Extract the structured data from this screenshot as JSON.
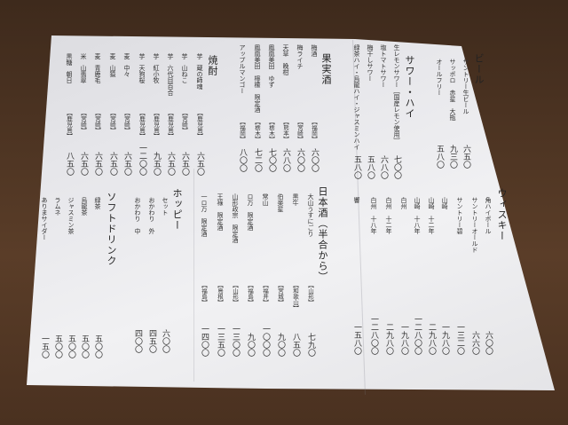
{
  "beer": {
    "title": "ビール",
    "items": [
      {
        "name": "サントリー生ビール",
        "price": "六五〇"
      },
      {
        "name": "サッポロ　赤星　大瓶",
        "price": "九三〇"
      },
      {
        "name": "オールフリー",
        "price": "五八〇"
      }
    ]
  },
  "sour": {
    "title": "サワー・ハイ",
    "items": [
      {
        "name": "生レモンサワー［国産レモン使用］",
        "price": "七〇〇"
      },
      {
        "name": "塩トマトサワー",
        "price": "六八〇"
      },
      {
        "name": "梅干しサワー",
        "price": "五八〇"
      },
      {
        "name": "緑茶ハイ・烏龍ハイ・ジャスミンハイ",
        "price": "五八〇"
      }
    ]
  },
  "fruit_wine": {
    "title": "果実酒",
    "items": [
      {
        "name": "梅酒",
        "origin": "【福岡】",
        "price": "六〇〇"
      },
      {
        "name": "梅ライチ",
        "origin": "【宮崎】",
        "price": "六〇〇"
      },
      {
        "name": "天草　晩柑",
        "origin": "【熊本】",
        "price": "六八〇"
      },
      {
        "name": "鳳凰美田　ゆず",
        "origin": "【栃木】",
        "price": "七〇〇"
      },
      {
        "name": "鳳凰美田　檸檬　限定酒",
        "origin": "【栃木】",
        "price": "七二〇"
      },
      {
        "name": "アップルマンゴー",
        "origin": "【福岡】",
        "price": "八〇〇"
      }
    ]
  },
  "shochu": {
    "title": "焼酎",
    "items": [
      {
        "type": "芋",
        "name": "蔵の師魂",
        "origin": "【鹿児島】",
        "price": "六五〇"
      },
      {
        "type": "芋",
        "name": "山ねこ",
        "origin": "【宮崎】",
        "price": "六五〇"
      },
      {
        "type": "芋",
        "name": "六代目百合",
        "origin": "【鹿児島】",
        "price": "六五〇"
      },
      {
        "type": "芋",
        "name": "紅小牧",
        "origin": "【鹿児島】",
        "price": "九五〇"
      },
      {
        "type": "芋",
        "name": "天狗桜",
        "origin": "【鹿児島】",
        "price": "一二〇〇"
      },
      {
        "type": "麦",
        "name": "中々",
        "origin": "【宮崎】",
        "price": "六五〇"
      },
      {
        "type": "麦",
        "name": "山猿",
        "origin": "【宮崎】",
        "price": "六五〇"
      },
      {
        "type": "麦",
        "name": "青鹿毛",
        "origin": "【宮崎】",
        "price": "六五〇"
      },
      {
        "type": "米",
        "name": "山翡翠",
        "origin": "【宮崎】",
        "price": "六五〇"
      },
      {
        "type": "黒糖",
        "name": "朝日",
        "origin": "【鹿児島】",
        "price": "八五〇"
      }
    ]
  },
  "whisky": {
    "title": "ウィスキー",
    "items": [
      {
        "name": "角ハイボール",
        "price": "六〇〇"
      },
      {
        "name": "サントリーオールド",
        "price": "六六〇"
      },
      {
        "name": "サントリー碧",
        "price": "一三二〇"
      },
      {
        "name": "山崎",
        "price": "一九八〇"
      },
      {
        "name": "山崎　十二年",
        "price": "二九八〇"
      },
      {
        "name": "山崎　十八年",
        "price": "一二八〇〇"
      },
      {
        "name": "白州",
        "price": "一九八〇"
      },
      {
        "name": "白州　十二年",
        "price": "二九八〇"
      },
      {
        "name": "白州　十八年",
        "price": "一二八〇〇"
      },
      {
        "name": "響",
        "price": "一五八〇"
      }
    ]
  },
  "sake": {
    "title": "日本酒（半合から）",
    "items": [
      {
        "name": "大山うすにごり",
        "origin": "【山形】",
        "price": "七九〇"
      },
      {
        "name": "黒牛",
        "origin": "【和歌山】",
        "price": "八五〇"
      },
      {
        "name": "伯楽星",
        "origin": "【宮城】",
        "price": "九〇〇"
      },
      {
        "name": "常山",
        "origin": "【福井】",
        "price": "一〇〇〇"
      },
      {
        "name": "ロ万　限定酒",
        "origin": "【福島】",
        "price": "九〇〇"
      },
      {
        "name": "山形政宗　限定酒",
        "origin": "【山形】",
        "price": "一三〇〇"
      },
      {
        "name": "王祿　限定酒",
        "origin": "【島根】",
        "price": "一三五〇"
      },
      {
        "name": "一ロ万　限定酒",
        "origin": "【福島】",
        "price": "一四〇〇"
      }
    ]
  },
  "hoppy": {
    "title": "ホッピー",
    "items": [
      {
        "name": "セット",
        "price": "六〇〇"
      },
      {
        "name": "おかわり　外",
        "price": "四五〇"
      },
      {
        "name": "おかわり　中",
        "price": "四〇〇"
      }
    ]
  },
  "soft_drinks": {
    "title": "ソフトドリンク",
    "items": [
      {
        "name": "緑茶",
        "price": "五〇〇"
      },
      {
        "name": "烏龍茶",
        "price": "五〇〇"
      },
      {
        "name": "ジャスミン茶",
        "price": "五〇〇"
      },
      {
        "name": "ラムネ",
        "price": "五〇〇"
      },
      {
        "name": "ありまサイダー",
        "price": "一五〇"
      }
    ]
  }
}
